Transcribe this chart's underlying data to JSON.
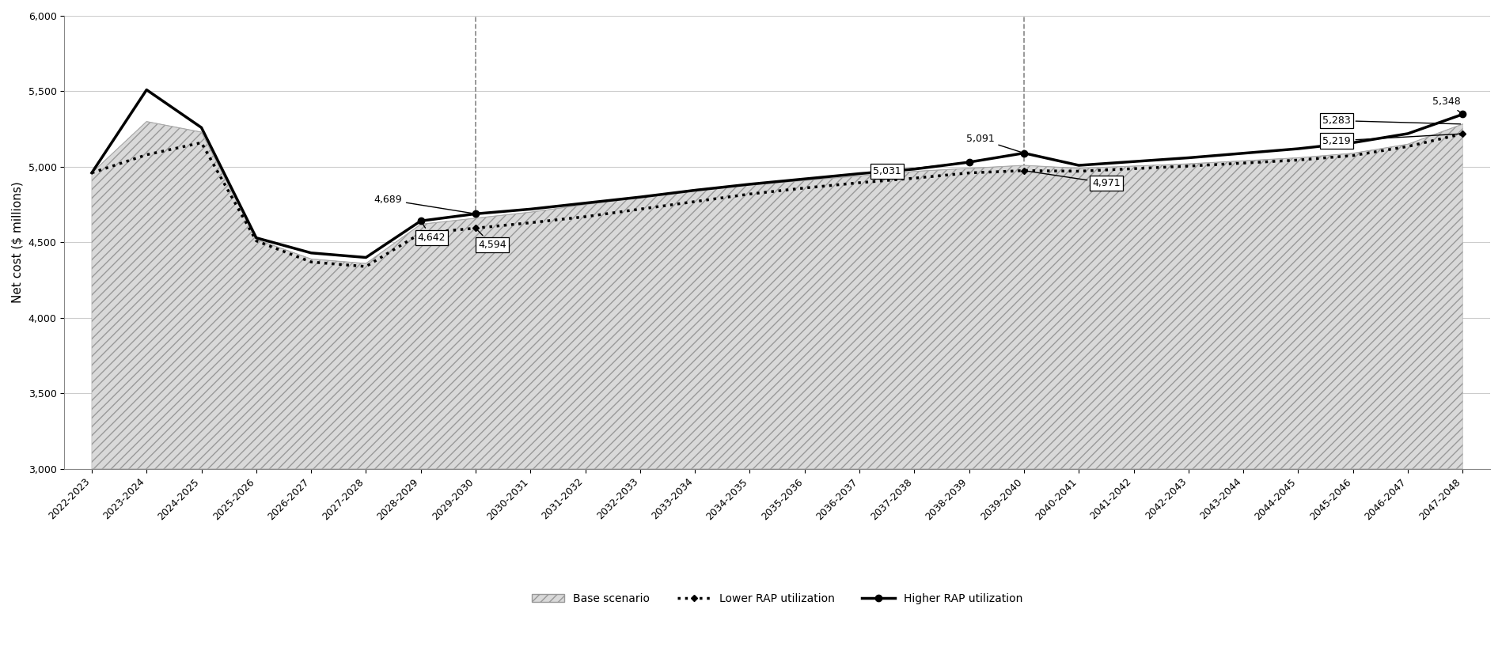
{
  "years": [
    "2022-2023",
    "2023-2024",
    "2024-2025",
    "2025-2026",
    "2026-2027",
    "2027-2028",
    "2028-2029",
    "2029-2030",
    "2030-2031",
    "2031-2032",
    "2032-2033",
    "2033-2034",
    "2034-2035",
    "2035-2036",
    "2036-2037",
    "2037-2038",
    "2038-2039",
    "2039-2040",
    "2040-2041",
    "2041-2042",
    "2042-2043",
    "2043-2044",
    "2044-2045",
    "2045-2046",
    "2046-2047",
    "2047-2048"
  ],
  "base_scenario": [
    4960,
    5300,
    5230,
    4520,
    4390,
    4360,
    4620,
    4660,
    4700,
    4750,
    4800,
    4850,
    4880,
    4910,
    4940,
    4970,
    4990,
    5010,
    4990,
    5005,
    5020,
    5040,
    5060,
    5090,
    5150,
    5283
  ],
  "lower_rap": [
    4960,
    5080,
    5160,
    4510,
    4370,
    4340,
    4560,
    4594,
    4630,
    4670,
    4720,
    4770,
    4820,
    4860,
    4895,
    4925,
    4960,
    4975,
    4971,
    4988,
    5005,
    5025,
    5045,
    5075,
    5135,
    5219
  ],
  "higher_rap": [
    4960,
    5510,
    5260,
    4530,
    4430,
    4400,
    4642,
    4689,
    4720,
    4760,
    4800,
    4845,
    4885,
    4920,
    4955,
    4985,
    5031,
    5091,
    5010,
    5035,
    5060,
    5090,
    5120,
    5160,
    5220,
    5348
  ],
  "vline_positions": [
    7,
    17
  ],
  "ylim": [
    3000,
    6000
  ],
  "yticks": [
    3000,
    3500,
    4000,
    4500,
    5000,
    5500,
    6000
  ],
  "ylabel": "Net cost ($ millions)",
  "area_color": "#d9d9d9",
  "area_hatch": "///",
  "vline_color": "#888888",
  "legend_labels": [
    "Base scenario",
    "Lower RAP utilization",
    "Higher RAP utilization"
  ],
  "axis_fontsize": 10,
  "tick_fontsize": 9,
  "annotation_fontsize": 9,
  "ylabel_fontsize": 11
}
